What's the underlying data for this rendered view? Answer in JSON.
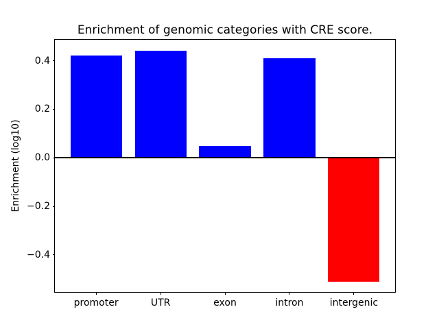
{
  "chart_data": {
    "type": "bar",
    "title": "Enrichment of genomic categories with CRE score.",
    "xlabel": "",
    "ylabel": "Enrichment (log10)",
    "categories": [
      "promoter",
      "UTR",
      "exon",
      "intron",
      "intergenic"
    ],
    "values": [
      0.42,
      0.44,
      0.049,
      0.41,
      -0.51
    ],
    "bar_colors": [
      "#0000ff",
      "#0000ff",
      "#0000ff",
      "#0000ff",
      "#ff0000"
    ],
    "positive_color": "#0000ff",
    "negative_color": "#ff0000",
    "yticks": [
      {
        "value": 0.4,
        "label": "0.4"
      },
      {
        "value": 0.2,
        "label": "0.2"
      },
      {
        "value": 0.0,
        "label": "0.0"
      },
      {
        "value": -0.2,
        "label": "−0.2"
      },
      {
        "value": -0.4,
        "label": "−0.4"
      }
    ],
    "ylim": [
      -0.553,
      0.486
    ],
    "xlim": [
      -0.64,
      4.64
    ],
    "bar_width": 0.8,
    "zero_line": true,
    "grid": false,
    "legend": "none",
    "axis_color": "#000000",
    "background_color": "#ffffff"
  }
}
